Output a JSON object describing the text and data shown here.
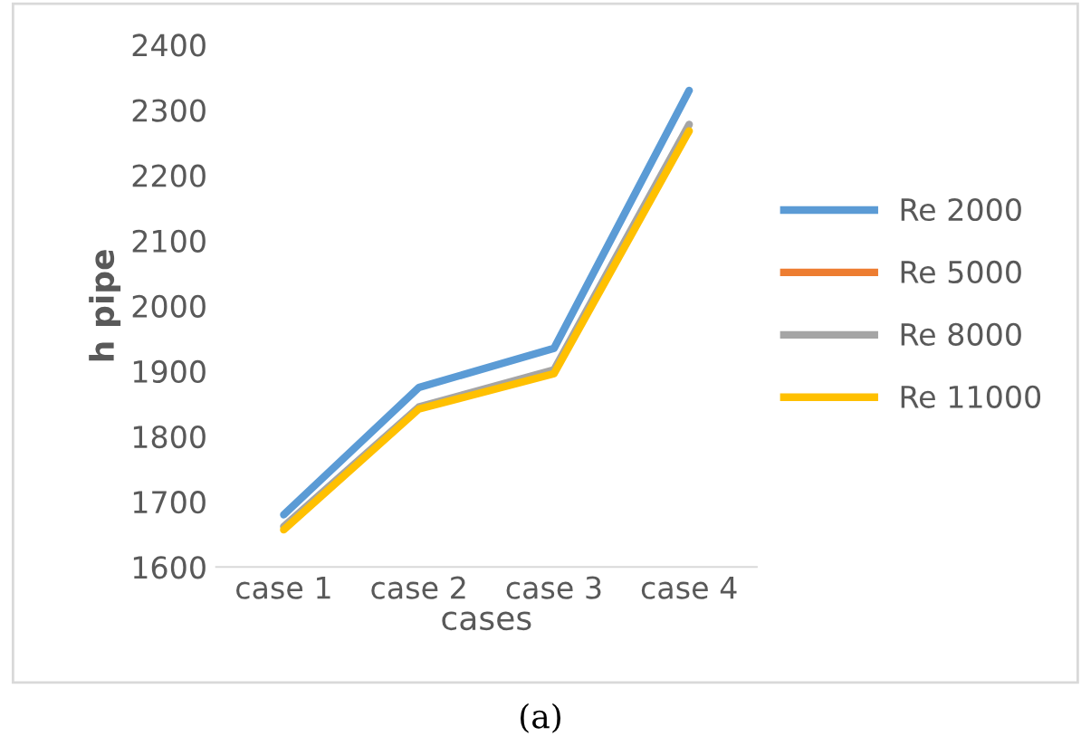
{
  "chart_data": {
    "type": "line",
    "xlabel": "cases",
    "ylabel": "h pipe",
    "categories": [
      "case 1",
      "case 2",
      "case 3",
      "case 4"
    ],
    "series": [
      {
        "name": "Re 2000",
        "color": "#5b9bd5",
        "values": [
          1680,
          1875,
          1935,
          2330
        ]
      },
      {
        "name": "Re 5000",
        "color": "#ed7d31",
        "values": [
          null,
          null,
          null,
          null
        ]
      },
      {
        "name": "Re 8000",
        "color": "#a5a5a5",
        "values": [
          1662,
          1845,
          1902,
          2278
        ]
      },
      {
        "name": "Re 11000",
        "color": "#ffc000",
        "values": [
          1657,
          1842,
          1896,
          2268
        ]
      }
    ],
    "ylim": [
      1600,
      2400
    ],
    "yticks": [
      1600,
      1700,
      1800,
      1900,
      2000,
      2100,
      2200,
      2300,
      2400
    ],
    "grid": false,
    "legend": "right",
    "marker": "none",
    "line_style": "solid",
    "annotations": [
      "(a)"
    ]
  }
}
